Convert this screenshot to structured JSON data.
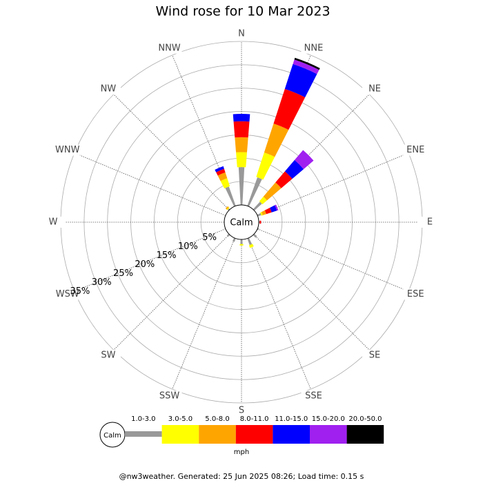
{
  "chart_data": {
    "type": "windrose",
    "title": "Wind rose for 10 Mar 2023",
    "categories": [
      "N",
      "NNE",
      "NE",
      "ENE",
      "E",
      "ESE",
      "SE",
      "SSE",
      "S",
      "SSW",
      "SW",
      "WSW",
      "W",
      "WNW",
      "NW",
      "NNW"
    ],
    "series": [
      {
        "name": "1.0-3.0",
        "color": "#999999",
        "values": [
          8.1,
          6.5,
          2.2,
          0.8,
          0.2,
          0.3,
          0.8,
          1.5,
          1.0,
          0.8,
          0.5,
          0,
          0,
          0,
          0.3,
          4.4
        ]
      },
      {
        "name": "3.0-5.0",
        "color": "#ffff00",
        "values": [
          3.2,
          5.5,
          1.3,
          0.3,
          0,
          0,
          0,
          0.6,
          0.3,
          0,
          0,
          0,
          0,
          0,
          0.2,
          1.8
        ]
      },
      {
        "name": "5.0-8.0",
        "color": "#ffa500",
        "values": [
          3.2,
          6.5,
          4.0,
          0.8,
          0,
          0,
          0,
          0,
          0,
          0,
          0,
          0,
          0,
          0,
          0.3,
          1.3
        ]
      },
      {
        "name": "8.0-11.0",
        "color": "#ff0000",
        "values": [
          3.4,
          7.8,
          3.1,
          1.2,
          0.3,
          0,
          0,
          0,
          0,
          0,
          0,
          0,
          0,
          0,
          0,
          0.8
        ]
      },
      {
        "name": "11.0-15.0",
        "color": "#0000ff",
        "values": [
          1.6,
          5.6,
          3.2,
          1.2,
          0,
          0,
          0,
          0,
          0,
          0,
          0,
          0,
          0,
          0,
          0,
          0.6
        ]
      },
      {
        "name": "15.0-20.0",
        "color": "#a020f0",
        "values": [
          0,
          1.0,
          2.8,
          0.3,
          0,
          0,
          0,
          0,
          0,
          0,
          0,
          0,
          0,
          0,
          0,
          0
        ]
      },
      {
        "name": "20.0-50.0",
        "color": "#000000",
        "values": [
          0,
          0.4,
          0,
          0,
          0,
          0,
          0,
          0,
          0,
          0,
          0,
          0,
          0,
          0,
          0,
          0
        ]
      }
    ],
    "rlim": [
      0,
      35
    ],
    "rticks": [
      {
        "value": 5,
        "label": "5%"
      },
      {
        "value": 10,
        "label": "10%"
      },
      {
        "value": 15,
        "label": "15%"
      },
      {
        "value": 20,
        "label": "20%"
      },
      {
        "value": 25,
        "label": "25%"
      },
      {
        "value": 30,
        "label": "30%"
      },
      {
        "value": 35,
        "label": "35%"
      }
    ],
    "calm_label": "Calm",
    "unit": "mph",
    "footer": "@nw3weather. Generated: 25 Jun 2025 08:26; Load time: 0.15 s"
  }
}
